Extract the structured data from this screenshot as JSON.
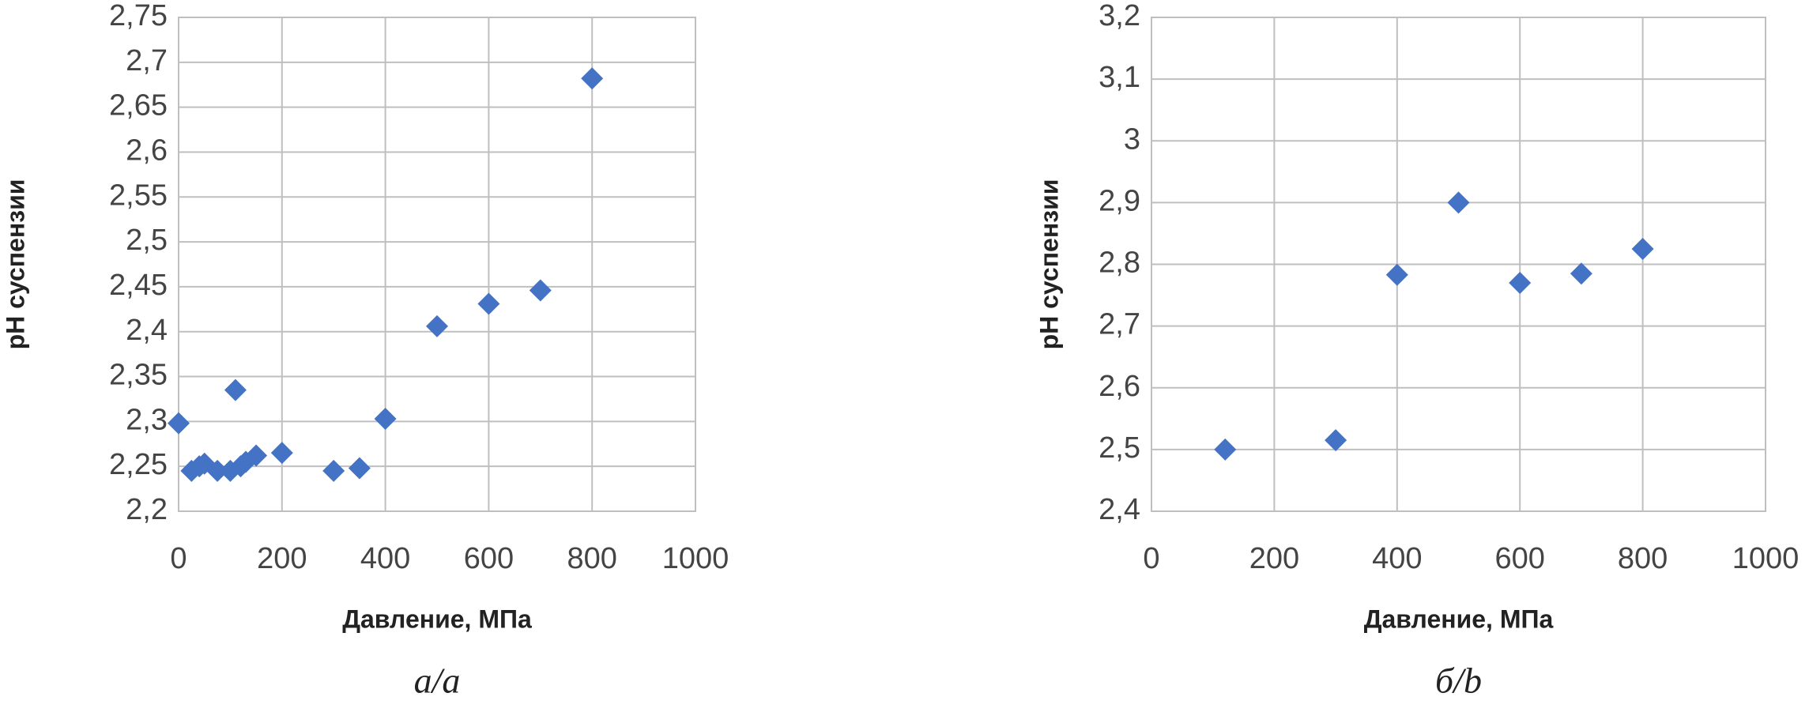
{
  "chart_data": [
    {
      "type": "scatter",
      "x_label": "Давление, МПа",
      "y_label": "pH суспензии",
      "caption": "а/a",
      "series": [
        {
          "color": "#4472c4",
          "x": [
            0,
            25,
            40,
            50,
            75,
            100,
            110,
            120,
            130,
            150,
            200,
            300,
            350,
            400,
            500,
            600,
            700,
            800
          ],
          "values": [
            2.298,
            2.245,
            2.25,
            2.253,
            2.245,
            2.245,
            2.335,
            2.25,
            2.255,
            2.262,
            2.265,
            2.245,
            2.248,
            2.303,
            2.406,
            2.431,
            2.446,
            2.682
          ]
        }
      ],
      "xlim": [
        0,
        1000
      ],
      "xticks": [
        0,
        200,
        400,
        600,
        800,
        1000
      ],
      "ylim": [
        2.2,
        2.75
      ],
      "yticks": [
        {
          "value": 2.2,
          "label": "2,2"
        },
        {
          "value": 2.25,
          "label": "2,25"
        },
        {
          "value": 2.3,
          "label": "2,3"
        },
        {
          "value": 2.35,
          "label": "2,35"
        },
        {
          "value": 2.4,
          "label": "2,4"
        },
        {
          "value": 2.45,
          "label": "2,45"
        },
        {
          "value": 2.5,
          "label": "2,5"
        },
        {
          "value": 2.55,
          "label": "2,55"
        },
        {
          "value": 2.6,
          "label": "2,6"
        },
        {
          "value": 2.65,
          "label": "2,65"
        },
        {
          "value": 2.7,
          "label": "2,7"
        },
        {
          "value": 2.75,
          "label": "2,75"
        }
      ],
      "grid": true
    },
    {
      "type": "scatter",
      "x_label": "Давление, МПа",
      "y_label": "pH суспензии",
      "caption": "б/b",
      "series": [
        {
          "color": "#4472c4",
          "x": [
            120,
            300,
            400,
            500,
            600,
            700,
            800
          ],
          "values": [
            2.5,
            2.515,
            2.783,
            2.9,
            2.77,
            2.785,
            2.825
          ]
        }
      ],
      "xlim": [
        0,
        1000
      ],
      "xticks": [
        0,
        200,
        400,
        600,
        800,
        1000
      ],
      "ylim": [
        2.4,
        3.2
      ],
      "yticks": [
        {
          "value": 2.4,
          "label": "2,4"
        },
        {
          "value": 2.5,
          "label": "2,5"
        },
        {
          "value": 2.6,
          "label": "2,6"
        },
        {
          "value": 2.7,
          "label": "2,7"
        },
        {
          "value": 2.8,
          "label": "2,8"
        },
        {
          "value": 2.9,
          "label": "2,9"
        },
        3,
        {
          "value": 3.1,
          "label": "3,1"
        },
        {
          "value": 3.2,
          "label": "3,2"
        }
      ],
      "grid": true
    }
  ]
}
